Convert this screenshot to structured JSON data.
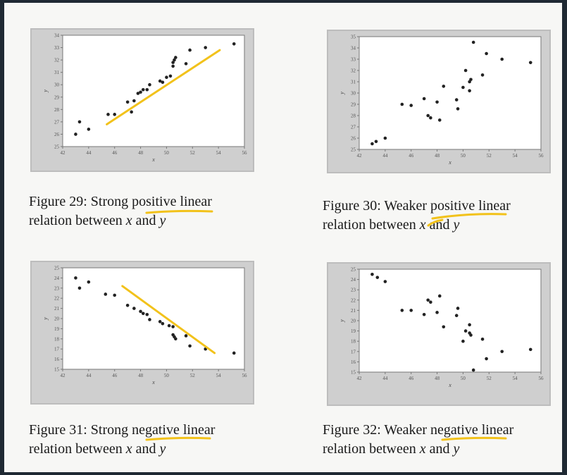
{
  "figures": [
    {
      "caption_line1": "Figure 29: Strong positive linear",
      "caption_line2_pre": "relation between ",
      "caption_x": "x",
      "caption_and": " and ",
      "caption_y": "y",
      "highlight_word": "positive"
    },
    {
      "caption_line1": "Figure 30: Weaker positive linear",
      "caption_line2_pre": "relation between ",
      "caption_x": "x",
      "caption_and": " and ",
      "caption_y": "y",
      "highlight_word": "positive"
    },
    {
      "caption_line1": "Figure 31: Strong negative linear",
      "caption_line2_pre": "relation between ",
      "caption_x": "x",
      "caption_and": " and ",
      "caption_y": "y",
      "highlight_word": "negative"
    },
    {
      "caption_line1": "Figure 32: Weaker negative linear",
      "caption_line2_pre": "relation between ",
      "caption_x": "x",
      "caption_and": " and ",
      "caption_y": "y",
      "highlight_word": "negative"
    }
  ],
  "colors": {
    "highlight": "#f2c21b",
    "point": "#222222",
    "plot_bg": "#ffffff",
    "frame": "#cfcfcf"
  },
  "chart_data": [
    {
      "type": "scatter",
      "xlabel": "x",
      "ylabel": "y",
      "xlim": [
        42,
        56
      ],
      "ylim": [
        25,
        34
      ],
      "xticks": [
        42,
        44,
        46,
        48,
        50,
        52,
        54,
        56
      ],
      "yticks": [
        25,
        26,
        27,
        28,
        29,
        30,
        31,
        32,
        33,
        34
      ],
      "points": [
        [
          43,
          26
        ],
        [
          43.3,
          27
        ],
        [
          44,
          26.4
        ],
        [
          45.5,
          27.6
        ],
        [
          46,
          27.6
        ],
        [
          47,
          28.6
        ],
        [
          47.3,
          27.8
        ],
        [
          47.5,
          28.7
        ],
        [
          47.8,
          29.3
        ],
        [
          48,
          29.4
        ],
        [
          48.2,
          29.6
        ],
        [
          48.5,
          29.6
        ],
        [
          48.7,
          30
        ],
        [
          49.5,
          30.3
        ],
        [
          49.7,
          30.2
        ],
        [
          50,
          30.6
        ],
        [
          50.3,
          30.7
        ],
        [
          50.5,
          31.5
        ],
        [
          50.5,
          31.8
        ],
        [
          50.6,
          32
        ],
        [
          50.7,
          32.2
        ],
        [
          51.5,
          31.7
        ],
        [
          51.8,
          32.8
        ],
        [
          53,
          33
        ],
        [
          55.2,
          33.3
        ]
      ],
      "fit_line": [
        [
          45.4,
          26.8
        ],
        [
          54.1,
          32.8
        ]
      ]
    },
    {
      "type": "scatter",
      "xlabel": "x",
      "ylabel": "y",
      "xlim": [
        42,
        56
      ],
      "ylim": [
        25,
        35
      ],
      "xticks": [
        42,
        44,
        46,
        48,
        50,
        52,
        54,
        56
      ],
      "yticks": [
        25,
        26,
        27,
        28,
        29,
        30,
        31,
        32,
        33,
        34,
        35
      ],
      "points": [
        [
          43,
          25.5
        ],
        [
          43.3,
          25.7
        ],
        [
          44,
          26
        ],
        [
          45.3,
          29
        ],
        [
          46,
          28.9
        ],
        [
          47,
          29.5
        ],
        [
          47.3,
          28
        ],
        [
          47.5,
          27.8
        ],
        [
          48,
          29.2
        ],
        [
          48.2,
          27.6
        ],
        [
          48.5,
          30.6
        ],
        [
          49.5,
          29.4
        ],
        [
          49.6,
          28.6
        ],
        [
          50,
          30.5
        ],
        [
          50.2,
          32
        ],
        [
          50.5,
          30.2
        ],
        [
          50.5,
          31
        ],
        [
          50.6,
          31.2
        ],
        [
          50.8,
          34.5
        ],
        [
          51.5,
          31.6
        ],
        [
          51.8,
          33.5
        ],
        [
          53,
          33
        ],
        [
          55.2,
          32.7
        ]
      ]
    },
    {
      "type": "scatter",
      "xlabel": "x",
      "ylabel": "y",
      "xlim": [
        42,
        56
      ],
      "ylim": [
        15,
        25
      ],
      "xticks": [
        42,
        44,
        46,
        48,
        50,
        52,
        54,
        56
      ],
      "yticks": [
        15,
        16,
        17,
        18,
        19,
        20,
        21,
        22,
        23,
        24,
        25
      ],
      "points": [
        [
          43,
          24
        ],
        [
          43.3,
          23
        ],
        [
          44,
          23.6
        ],
        [
          45.3,
          22.4
        ],
        [
          46,
          22.3
        ],
        [
          47,
          21.3
        ],
        [
          47.5,
          21
        ],
        [
          48,
          20.7
        ],
        [
          48.2,
          20.5
        ],
        [
          48.5,
          20.4
        ],
        [
          48.7,
          19.9
        ],
        [
          49.5,
          19.7
        ],
        [
          49.7,
          19.5
        ],
        [
          50.2,
          19.3
        ],
        [
          50.5,
          19.2
        ],
        [
          50.5,
          18.4
        ],
        [
          50.6,
          18.2
        ],
        [
          50.7,
          18
        ],
        [
          51.5,
          18.3
        ],
        [
          51.8,
          17.3
        ],
        [
          53,
          17
        ],
        [
          55.2,
          16.6
        ]
      ],
      "fit_line": [
        [
          46.6,
          23.2
        ],
        [
          53.7,
          16.6
        ]
      ]
    },
    {
      "type": "scatter",
      "xlabel": "x",
      "ylabel": "y",
      "xlim": [
        42,
        56
      ],
      "ylim": [
        15,
        25
      ],
      "xticks": [
        42,
        44,
        46,
        48,
        50,
        52,
        54,
        56
      ],
      "yticks": [
        15,
        16,
        17,
        18,
        19,
        20,
        21,
        22,
        23,
        24,
        25
      ],
      "points": [
        [
          43,
          24.5
        ],
        [
          43.4,
          24.2
        ],
        [
          44,
          23.8
        ],
        [
          45.3,
          21
        ],
        [
          46,
          21
        ],
        [
          47,
          20.6
        ],
        [
          47.3,
          22
        ],
        [
          47.5,
          21.8
        ],
        [
          48,
          20.8
        ],
        [
          48.2,
          22.4
        ],
        [
          48.5,
          19.4
        ],
        [
          49.5,
          20.5
        ],
        [
          49.6,
          21.2
        ],
        [
          50,
          18
        ],
        [
          50.2,
          19
        ],
        [
          50.5,
          19.6
        ],
        [
          50.5,
          18.8
        ],
        [
          50.6,
          18.6
        ],
        [
          50.8,
          15.2
        ],
        [
          51.5,
          18.2
        ],
        [
          51.8,
          16.3
        ],
        [
          53,
          17
        ],
        [
          55.2,
          17.2
        ]
      ]
    }
  ]
}
